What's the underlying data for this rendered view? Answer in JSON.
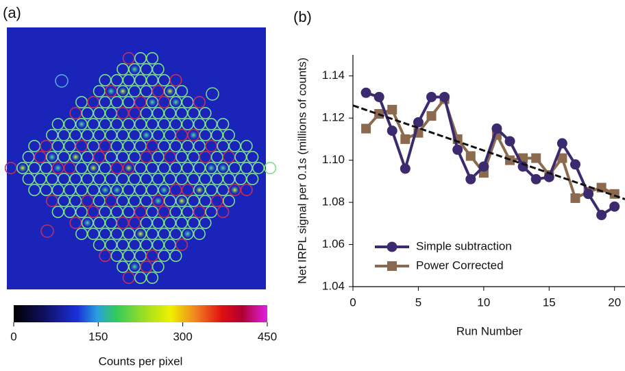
{
  "chart_data": [
    {
      "type": "image",
      "panel_label": "(a)",
      "colorbar": {
        "xlim": [
          0,
          450
        ],
        "xticks": [
          0,
          150,
          300,
          450
        ],
        "xlabel": "Counts per pixel"
      }
    },
    {
      "type": "line",
      "panel_label": "(b)",
      "xlabel": "Run Number",
      "ylabel": "Net IRPL signal per 0.1s (millions of counts)",
      "x": [
        1,
        2,
        3,
        4,
        5,
        6,
        7,
        8,
        9,
        10,
        11,
        12,
        13,
        14,
        15,
        16,
        17,
        18,
        19,
        20
      ],
      "series": [
        {
          "name": "Simple subtraction",
          "color": "#3b2a6e",
          "marker": "circle",
          "values": [
            1.132,
            1.13,
            1.114,
            1.096,
            1.118,
            1.13,
            1.13,
            1.105,
            1.091,
            1.097,
            1.115,
            1.109,
            1.097,
            1.091,
            1.092,
            1.108,
            1.098,
            1.084,
            1.074,
            1.078
          ]
        },
        {
          "name": "Power Corrected",
          "color": "#8b6a50",
          "marker": "square",
          "values": [
            1.115,
            1.122,
            1.124,
            1.11,
            1.113,
            1.121,
            1.129,
            1.11,
            1.102,
            1.094,
            1.112,
            1.1,
            1.101,
            1.101,
            1.093,
            1.101,
            1.082,
            1.085,
            1.087,
            1.084
          ]
        }
      ],
      "trendline": {
        "x": [
          0,
          20.8
        ],
        "values": [
          1.126,
          1.0815
        ]
      },
      "xlim": [
        0,
        20.8
      ],
      "ylim": [
        1.04,
        1.15
      ],
      "xticks": [
        0,
        5,
        10,
        15,
        20
      ],
      "yticks": [
        1.04,
        1.06,
        1.08,
        {
          "value": 1.1,
          "label": "1.10"
        },
        1.12,
        1.14
      ],
      "legend": "lower left"
    }
  ]
}
